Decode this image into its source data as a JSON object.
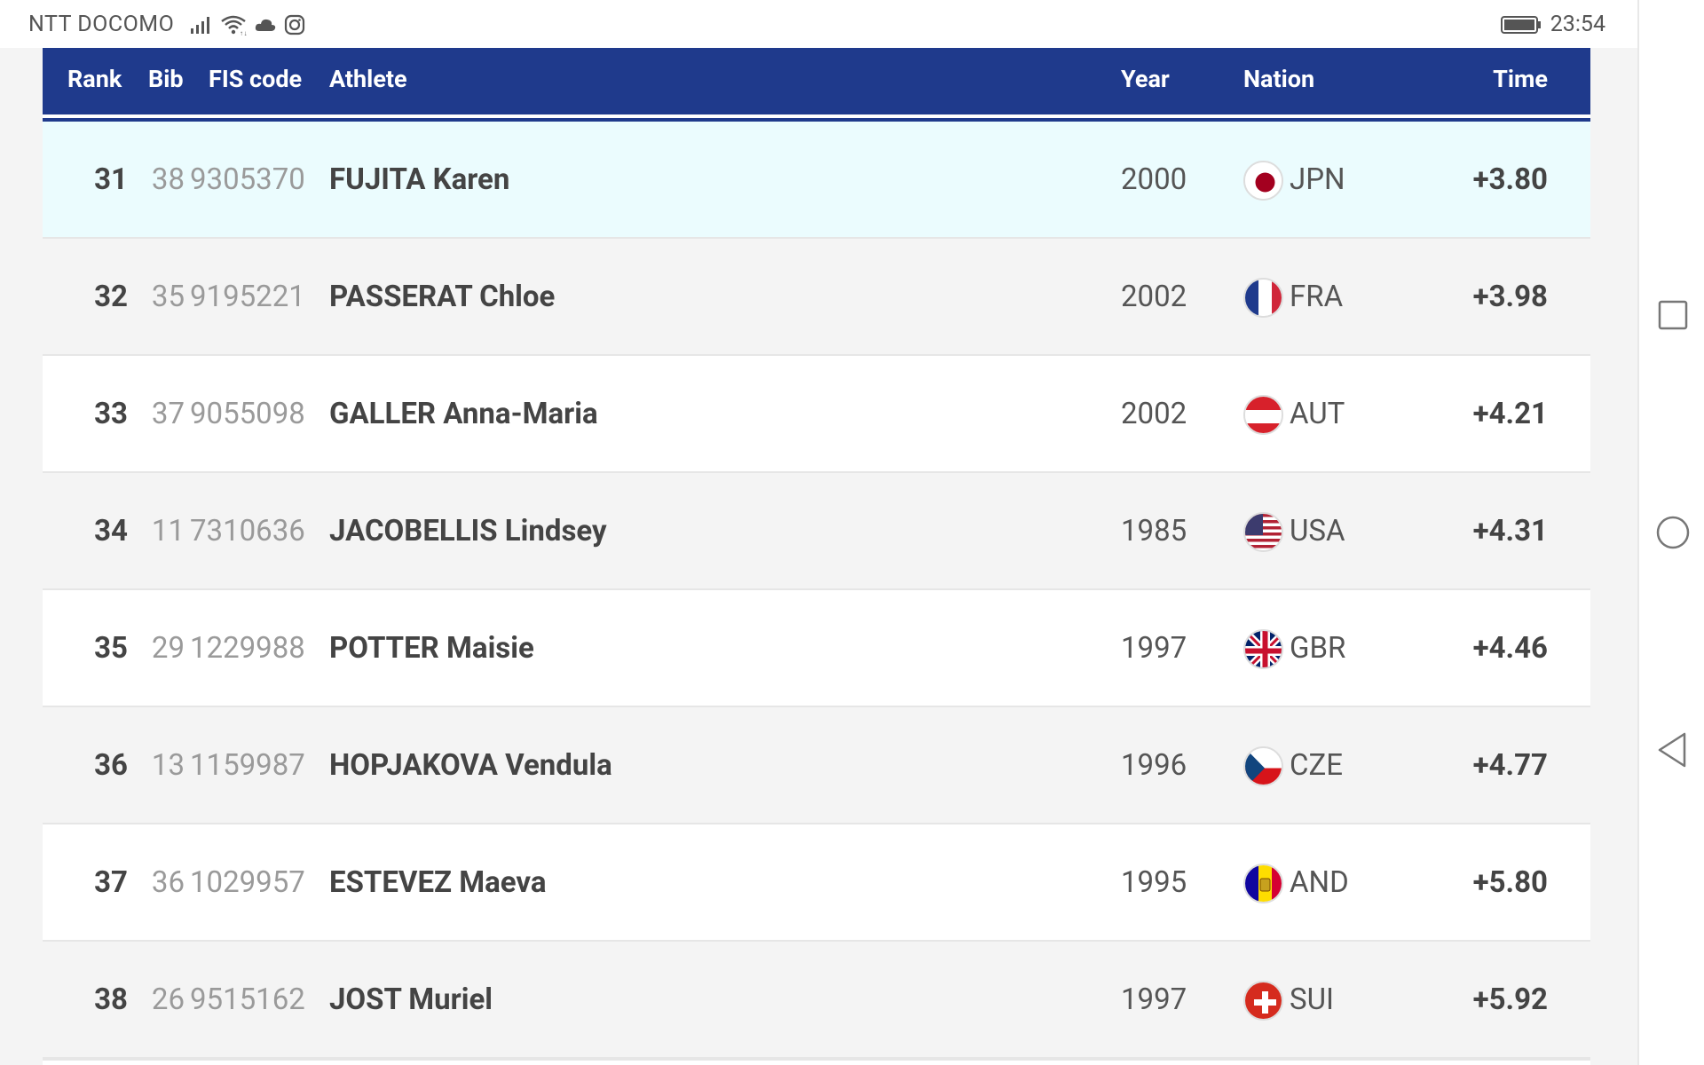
{
  "status_bar": {
    "carrier": "NTT DOCOMO",
    "time": "23:54",
    "icons": [
      "signal-icon",
      "wifi-icon",
      "cloud-icon",
      "instagram-icon",
      "battery-icon"
    ]
  },
  "table": {
    "headers": {
      "rank": "Rank",
      "bib": "Bib",
      "fis_code": "FIS code",
      "athlete": "Athlete",
      "year": "Year",
      "nation": "Nation",
      "time": "Time"
    },
    "rows": [
      {
        "rank": "31",
        "bib": "38",
        "fis_code": "9305370",
        "athlete": "FUJITA Karen",
        "year": "2000",
        "nation": "JPN",
        "time": "+3.80",
        "flag": "jpn-flag-icon",
        "highlighted": true
      },
      {
        "rank": "32",
        "bib": "35",
        "fis_code": "9195221",
        "athlete": "PASSERAT Chloe",
        "year": "2002",
        "nation": "FRA",
        "time": "+3.98",
        "flag": "fra-flag-icon"
      },
      {
        "rank": "33",
        "bib": "37",
        "fis_code": "9055098",
        "athlete": "GALLER Anna-Maria",
        "year": "2002",
        "nation": "AUT",
        "time": "+4.21",
        "flag": "aut-flag-icon"
      },
      {
        "rank": "34",
        "bib": "11",
        "fis_code": "7310636",
        "athlete": "JACOBELLIS Lindsey",
        "year": "1985",
        "nation": "USA",
        "time": "+4.31",
        "flag": "usa-flag-icon"
      },
      {
        "rank": "35",
        "bib": "29",
        "fis_code": "1229988",
        "athlete": "POTTER Maisie",
        "year": "1997",
        "nation": "GBR",
        "time": "+4.46",
        "flag": "gbr-flag-icon"
      },
      {
        "rank": "36",
        "bib": "13",
        "fis_code": "1159987",
        "athlete": "HOPJAKOVA Vendula",
        "year": "1996",
        "nation": "CZE",
        "time": "+4.77",
        "flag": "cze-flag-icon"
      },
      {
        "rank": "37",
        "bib": "36",
        "fis_code": "1029957",
        "athlete": "ESTEVEZ Maeva",
        "year": "1995",
        "nation": "AND",
        "time": "+5.80",
        "flag": "and-flag-icon"
      },
      {
        "rank": "38",
        "bib": "26",
        "fis_code": "9515162",
        "athlete": "JOST Muriel",
        "year": "1997",
        "nation": "SUI",
        "time": "+5.92",
        "flag": "sui-flag-icon"
      }
    ]
  },
  "colors": {
    "header_bg": "#1f3a8c",
    "highlight_row": "#ebfcfe",
    "odd_row": "#ffffff",
    "even_row": "#f4f4f4"
  },
  "nav_bar": {
    "icons": [
      "recents-icon",
      "home-icon",
      "back-icon"
    ]
  }
}
